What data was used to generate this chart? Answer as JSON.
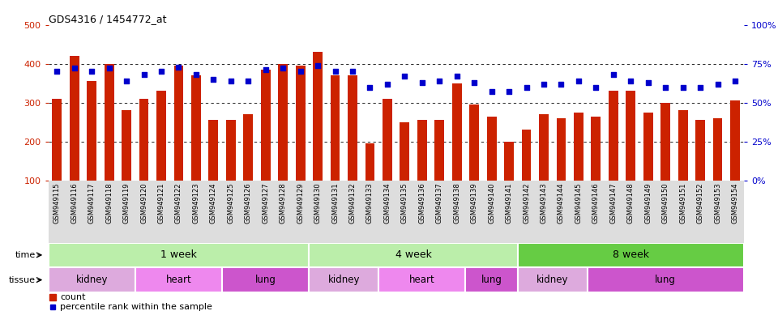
{
  "title": "GDS4316 / 1454772_at",
  "samples": [
    "GSM949115",
    "GSM949116",
    "GSM949117",
    "GSM949118",
    "GSM949119",
    "GSM949120",
    "GSM949121",
    "GSM949122",
    "GSM949123",
    "GSM949124",
    "GSM949125",
    "GSM949126",
    "GSM949127",
    "GSM949128",
    "GSM949129",
    "GSM949130",
    "GSM949131",
    "GSM949132",
    "GSM949133",
    "GSM949134",
    "GSM949135",
    "GSM949136",
    "GSM949137",
    "GSM949138",
    "GSM949139",
    "GSM949140",
    "GSM949141",
    "GSM949142",
    "GSM949143",
    "GSM949144",
    "GSM949145",
    "GSM949146",
    "GSM949147",
    "GSM949148",
    "GSM949149",
    "GSM949150",
    "GSM949151",
    "GSM949152",
    "GSM949153",
    "GSM949154"
  ],
  "counts": [
    310,
    420,
    355,
    400,
    280,
    310,
    330,
    395,
    370,
    255,
    255,
    270,
    385,
    400,
    395,
    430,
    370,
    370,
    195,
    310,
    250,
    255,
    255,
    350,
    295,
    265,
    200,
    230,
    270,
    260,
    275,
    265,
    330,
    330,
    275,
    300,
    280,
    255,
    260,
    305
  ],
  "percentiles": [
    70,
    72,
    70,
    72,
    64,
    68,
    70,
    73,
    68,
    65,
    64,
    64,
    71,
    72,
    70,
    74,
    70,
    70,
    60,
    62,
    67,
    63,
    64,
    67,
    63,
    57,
    57,
    60,
    62,
    62,
    64,
    60,
    68,
    64,
    63,
    60,
    60,
    60,
    62,
    64
  ],
  "ylim_left": [
    100,
    500
  ],
  "ylim_right": [
    0,
    100
  ],
  "yticks_left": [
    100,
    200,
    300,
    400,
    500
  ],
  "yticks_right": [
    0,
    25,
    50,
    75,
    100
  ],
  "grid_values": [
    200,
    300,
    400
  ],
  "bar_color": "#cc2200",
  "dot_color": "#0000cc",
  "time_groups": [
    {
      "label": "1 week",
      "start": 0,
      "end": 15
    },
    {
      "label": "4 week",
      "start": 15,
      "end": 27
    },
    {
      "label": "8 week",
      "start": 27,
      "end": 40
    }
  ],
  "time_color_light": "#bbeeaa",
  "time_color_dark": "#66cc44",
  "tissue_groups": [
    {
      "label": "kidney",
      "start": 0,
      "end": 5,
      "color": "#ddaadd"
    },
    {
      "label": "heart",
      "start": 5,
      "end": 10,
      "color": "#ee88ee"
    },
    {
      "label": "lung",
      "start": 10,
      "end": 15,
      "color": "#cc55cc"
    },
    {
      "label": "kidney",
      "start": 15,
      "end": 19,
      "color": "#ddaadd"
    },
    {
      "label": "heart",
      "start": 19,
      "end": 24,
      "color": "#ee88ee"
    },
    {
      "label": "lung",
      "start": 24,
      "end": 27,
      "color": "#cc55cc"
    },
    {
      "label": "kidney",
      "start": 27,
      "end": 31,
      "color": "#ddaadd"
    },
    {
      "label": "lung",
      "start": 31,
      "end": 40,
      "color": "#cc55cc"
    }
  ],
  "legend_count_color": "#cc2200",
  "legend_dot_color": "#0000cc",
  "bg_color": "#ffffff",
  "xtick_bg": "#dddddd",
  "left_tick_color": "#cc2200",
  "right_tick_color": "#0000cc"
}
